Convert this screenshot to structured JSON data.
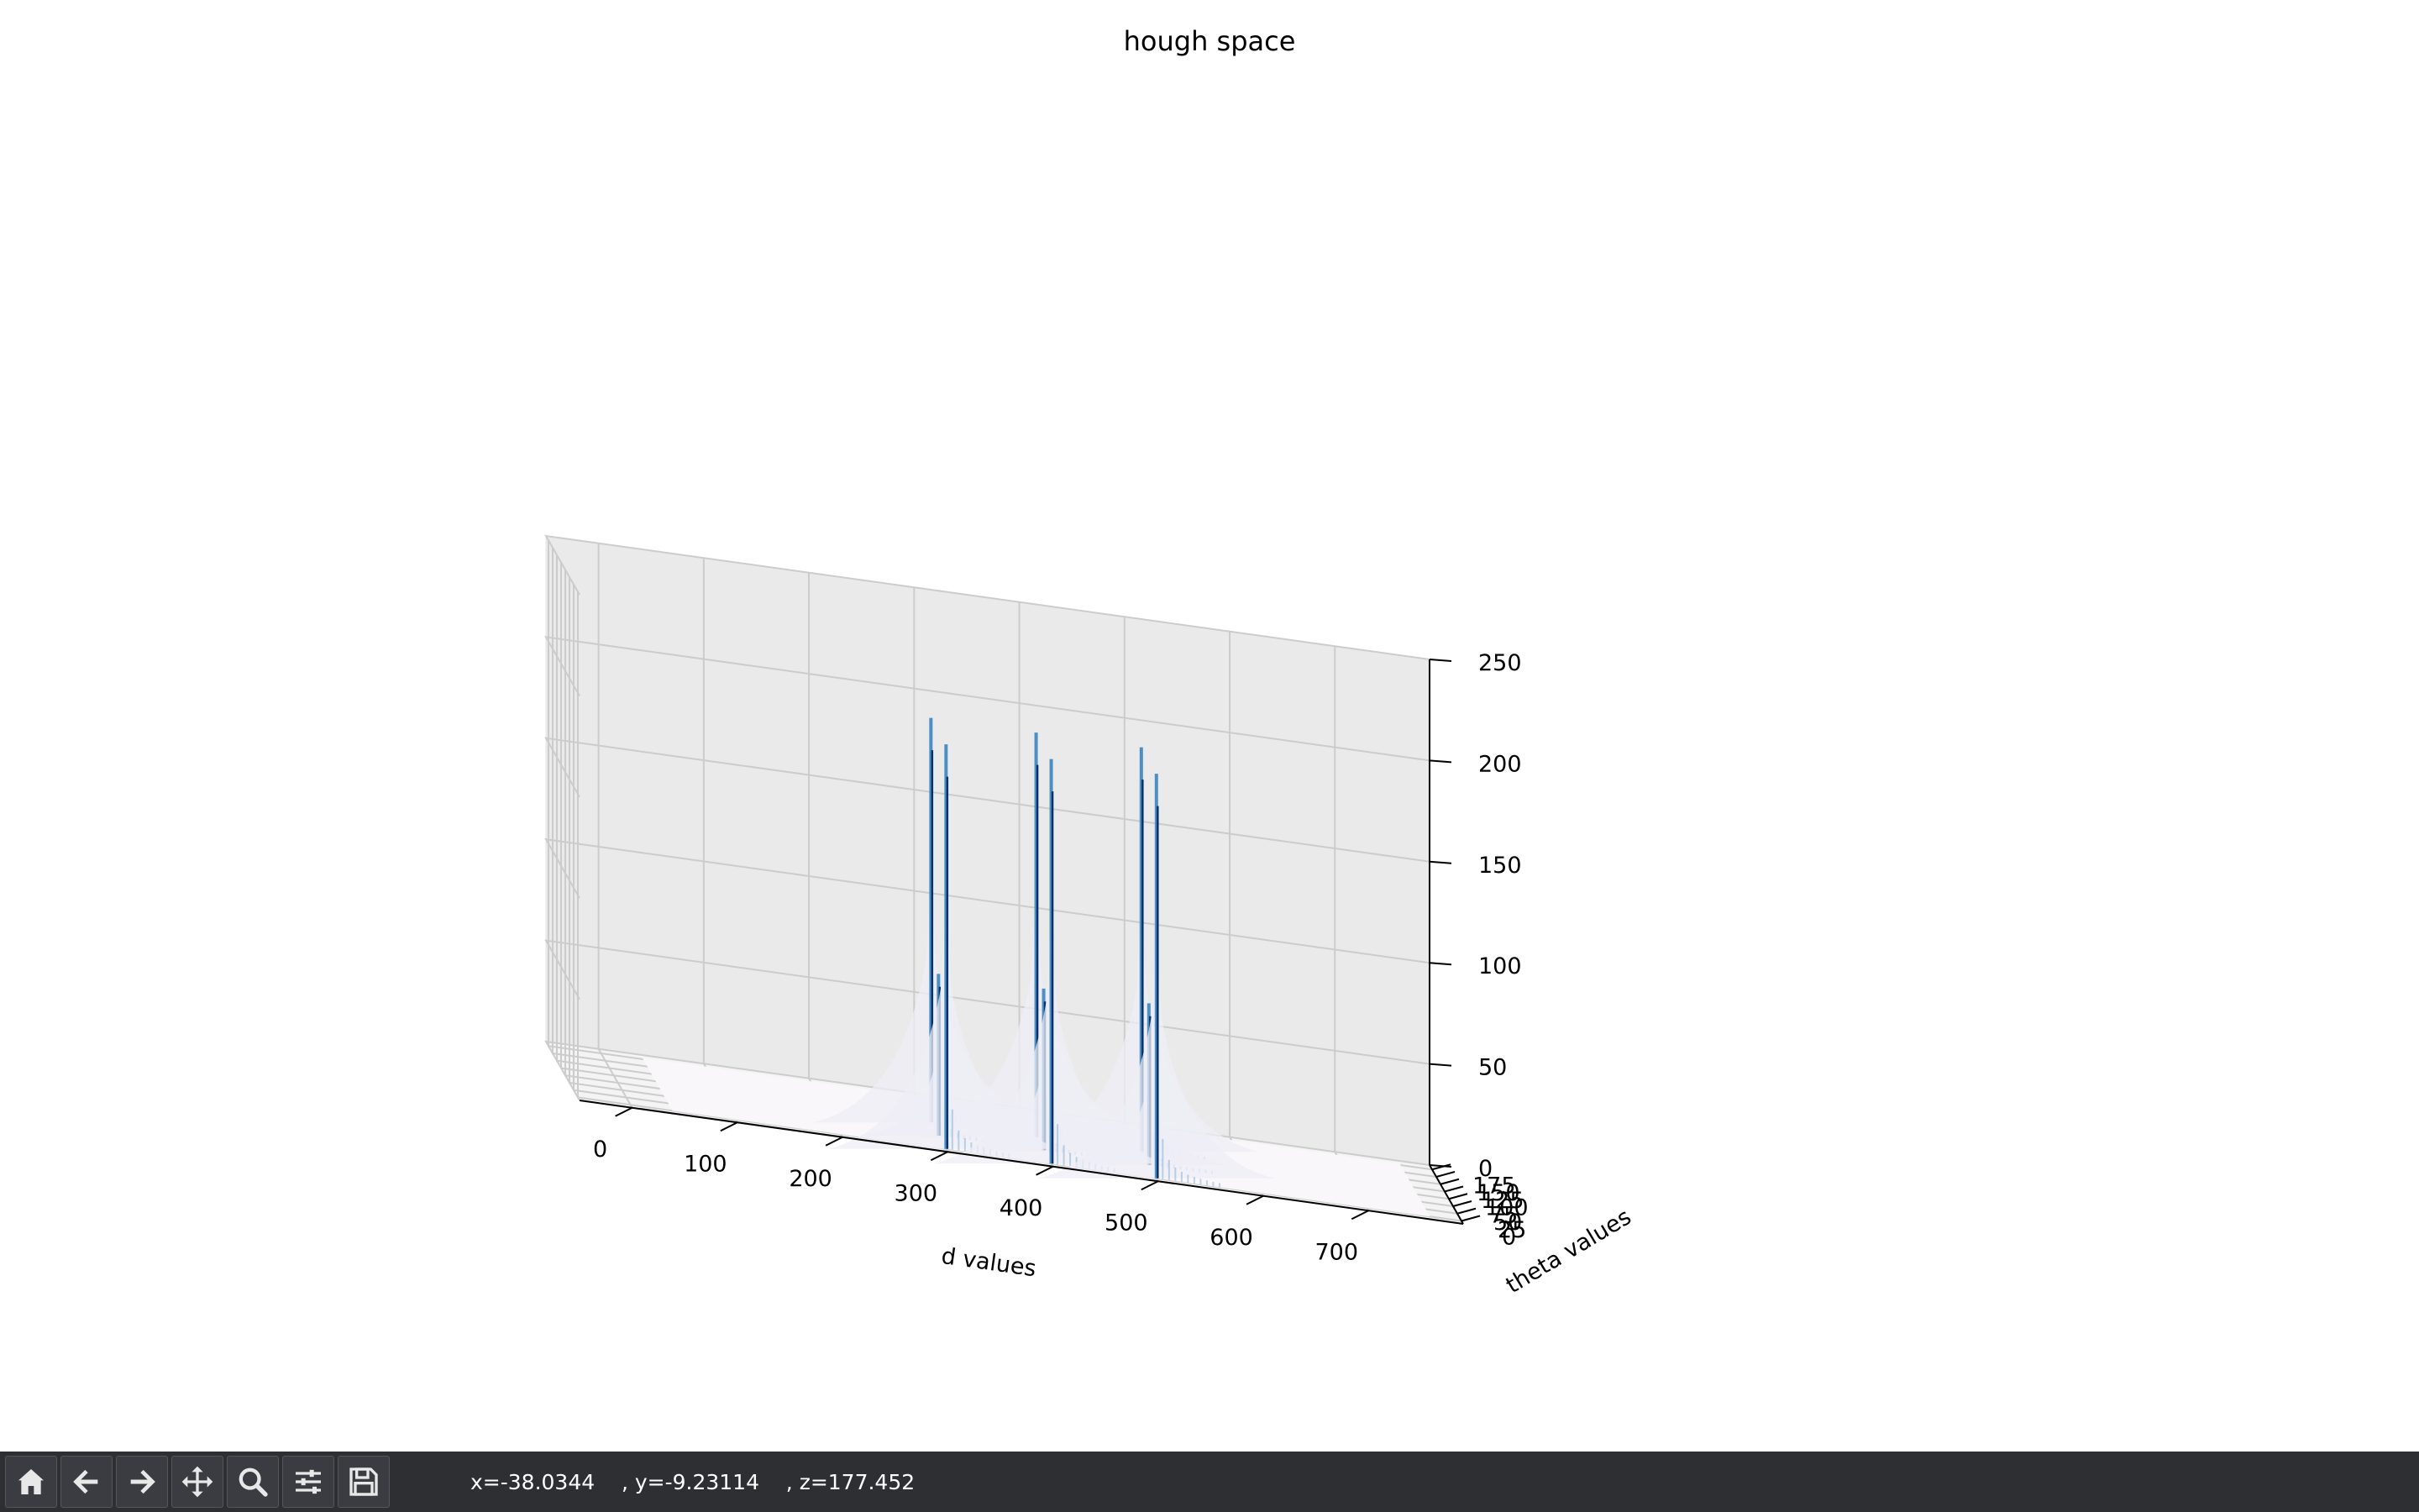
{
  "toolbar": {
    "buttons": [
      {
        "icon": "home-icon",
        "tooltip": "Reset original view"
      },
      {
        "icon": "back-arrow-icon",
        "tooltip": "Back to previous view"
      },
      {
        "icon": "forward-arrow-icon",
        "tooltip": "Forward to next view"
      },
      {
        "icon": "move-icon",
        "tooltip": "Pan axes"
      },
      {
        "icon": "zoom-icon",
        "tooltip": "Zoom to rectangle"
      },
      {
        "icon": "sliders-icon",
        "tooltip": "Configure subplots"
      },
      {
        "icon": "save-icon",
        "tooltip": "Save the figure"
      }
    ],
    "coords": {
      "x": "x=-38.0344",
      "y": ", y=-9.23114",
      "z": ", z=177.452"
    }
  },
  "colors": {
    "peak_dark": "#08306b",
    "peak_mid": "#4b8fc4",
    "surface_low": "#eeedf6",
    "toolbar_bg": "#2e2f33",
    "grid": "#cccccc",
    "pane": "#f2f2f2"
  },
  "chart_data": {
    "type": "surface3d",
    "title": "hough space",
    "xlabel": "d values",
    "ylabel": "theta values",
    "zlabel": "",
    "xlim": [
      -50,
      790
    ],
    "ylim": [
      -10,
      190
    ],
    "zlim": [
      0,
      250
    ],
    "x_ticks": [
      0,
      100,
      200,
      300,
      400,
      500,
      600,
      700
    ],
    "y_ticks": [
      0,
      25,
      50,
      75,
      100,
      125,
      150,
      175
    ],
    "z_ticks": [
      0,
      50,
      100,
      150,
      200,
      250
    ],
    "x_tick_labels": [
      "0",
      "100",
      "200",
      "300",
      "400",
      "500",
      "600",
      "700"
    ],
    "y_tick_labels": [
      "0",
      "25",
      "50",
      "75",
      "100",
      "125",
      "150",
      "175"
    ],
    "z_tick_labels": [
      "0",
      "50",
      "100",
      "150",
      "200",
      "250"
    ],
    "colormap": "Blues",
    "grid": true,
    "peaks": [
      {
        "d": 300,
        "theta": 0,
        "value": 200
      },
      {
        "d": 400,
        "theta": 0,
        "value": 200
      },
      {
        "d": 500,
        "theta": 0,
        "value": 200
      },
      {
        "d": 300,
        "theta": 90,
        "value": 200
      },
      {
        "d": 400,
        "theta": 90,
        "value": 200
      },
      {
        "d": 500,
        "theta": 90,
        "value": 200
      },
      {
        "d": 300,
        "theta": 45,
        "value": 80
      },
      {
        "d": 400,
        "theta": 45,
        "value": 80
      },
      {
        "d": 500,
        "theta": 45,
        "value": 80
      }
    ]
  }
}
